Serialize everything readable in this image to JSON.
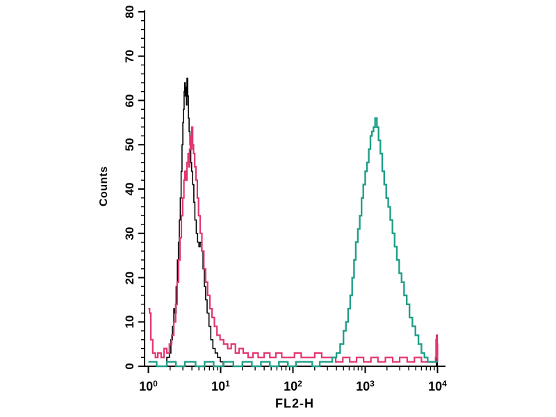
{
  "figure": {
    "background": "#ffffff",
    "axis_color": "#000000"
  },
  "chart_data": {
    "type": "line",
    "chart_kind": "flow-cytometry histogram overlay, stepped traces, no legend, no gridlines",
    "title": "",
    "xlabel": "FL2-H",
    "ylabel": "Counts",
    "x_scale": "log10",
    "x_range": [
      1,
      10000
    ],
    "y_range": [
      0,
      80
    ],
    "x_tick_base": "10",
    "x_tick_exponents": [
      "0",
      "1",
      "2",
      "3",
      "4"
    ],
    "y_tick_labels": [
      "0",
      "10",
      "20",
      "30",
      "40",
      "50",
      "60",
      "70",
      "80"
    ],
    "y_minor_tick_step": 2,
    "grid": "off",
    "legend": "none",
    "series": [
      {
        "name": "black-trace",
        "color": "#000000",
        "stroke_width": 1.6,
        "peak": {
          "x": 3.4,
          "count": 65
        },
        "points": [
          [
            1,
            0
          ],
          [
            1.7,
            0
          ],
          [
            1.8,
            2
          ],
          [
            1.95,
            3
          ],
          [
            2.05,
            6
          ],
          [
            2.15,
            9
          ],
          [
            2.25,
            13
          ],
          [
            2.32,
            12
          ],
          [
            2.42,
            18
          ],
          [
            2.52,
            24
          ],
          [
            2.6,
            28
          ],
          [
            2.68,
            33
          ],
          [
            2.76,
            38
          ],
          [
            2.84,
            44
          ],
          [
            2.92,
            50
          ],
          [
            3.0,
            55
          ],
          [
            3.06,
            58
          ],
          [
            3.12,
            62
          ],
          [
            3.18,
            64
          ],
          [
            3.24,
            61
          ],
          [
            3.3,
            63
          ],
          [
            3.36,
            59
          ],
          [
            3.42,
            65
          ],
          [
            3.5,
            61
          ],
          [
            3.58,
            56
          ],
          [
            3.66,
            53
          ],
          [
            3.76,
            50
          ],
          [
            3.86,
            46
          ],
          [
            3.96,
            44
          ],
          [
            4.1,
            41
          ],
          [
            4.25,
            37
          ],
          [
            4.4,
            33
          ],
          [
            4.6,
            30
          ],
          [
            4.8,
            28
          ],
          [
            5.0,
            27
          ],
          [
            5.2,
            28
          ],
          [
            5.45,
            26
          ],
          [
            5.7,
            22
          ],
          [
            5.95,
            18
          ],
          [
            6.2,
            15
          ],
          [
            6.5,
            12
          ],
          [
            6.9,
            9
          ],
          [
            7.3,
            6
          ],
          [
            7.8,
            4
          ],
          [
            8.4,
            3
          ],
          [
            9.1,
            2
          ],
          [
            9.9,
            1
          ],
          [
            10.8,
            0
          ],
          [
            9000,
            0
          ],
          [
            9550,
            0
          ],
          [
            9650,
            7
          ],
          [
            9850,
            7
          ],
          [
            9950,
            0
          ]
        ]
      },
      {
        "name": "magenta-trace",
        "color": "#e13570",
        "stroke_width": 2.2,
        "peak": {
          "x": 4.0,
          "count": 54
        },
        "points": [
          [
            1,
            13
          ],
          [
            1.04,
            12
          ],
          [
            1.08,
            6
          ],
          [
            1.15,
            3
          ],
          [
            1.25,
            2
          ],
          [
            1.35,
            3
          ],
          [
            1.5,
            2
          ],
          [
            1.65,
            4
          ],
          [
            1.8,
            3
          ],
          [
            1.95,
            5
          ],
          [
            2.1,
            7
          ],
          [
            2.25,
            10
          ],
          [
            2.38,
            14
          ],
          [
            2.5,
            19
          ],
          [
            2.62,
            24
          ],
          [
            2.74,
            29
          ],
          [
            2.86,
            34
          ],
          [
            2.98,
            38
          ],
          [
            3.1,
            42
          ],
          [
            3.2,
            44
          ],
          [
            3.3,
            42
          ],
          [
            3.42,
            46
          ],
          [
            3.54,
            48
          ],
          [
            3.62,
            45
          ],
          [
            3.72,
            49
          ],
          [
            3.82,
            52
          ],
          [
            3.9,
            49
          ],
          [
            4.0,
            54
          ],
          [
            4.1,
            50
          ],
          [
            4.22,
            48
          ],
          [
            4.38,
            45
          ],
          [
            4.55,
            42
          ],
          [
            4.75,
            38
          ],
          [
            4.95,
            34
          ],
          [
            5.2,
            30
          ],
          [
            5.5,
            26
          ],
          [
            5.85,
            22
          ],
          [
            6.2,
            19
          ],
          [
            6.6,
            16
          ],
          [
            7.1,
            13
          ],
          [
            7.6,
            11
          ],
          [
            8.2,
            9
          ],
          [
            8.9,
            7
          ],
          [
            9.8,
            6
          ],
          [
            11,
            5
          ],
          [
            12.5,
            4
          ],
          [
            14,
            5
          ],
          [
            16,
            3
          ],
          [
            18,
            4
          ],
          [
            20.5,
            3
          ],
          [
            24,
            2
          ],
          [
            28,
            3
          ],
          [
            33,
            2
          ],
          [
            40,
            3
          ],
          [
            48,
            2
          ],
          [
            58,
            3
          ],
          [
            70,
            2
          ],
          [
            85,
            2
          ],
          [
            105,
            3
          ],
          [
            130,
            2
          ],
          [
            160,
            2
          ],
          [
            200,
            3
          ],
          [
            250,
            2
          ],
          [
            310,
            2
          ],
          [
            390,
            1
          ],
          [
            490,
            2
          ],
          [
            610,
            1
          ],
          [
            760,
            2
          ],
          [
            950,
            1
          ],
          [
            1200,
            2
          ],
          [
            1500,
            1
          ],
          [
            1900,
            2
          ],
          [
            2400,
            1
          ],
          [
            3000,
            2
          ],
          [
            3800,
            1
          ],
          [
            4800,
            2
          ],
          [
            6000,
            1
          ],
          [
            7500,
            1
          ],
          [
            8800,
            1
          ],
          [
            9400,
            2
          ],
          [
            9550,
            6
          ],
          [
            9750,
            7
          ],
          [
            9900,
            5
          ],
          [
            10000,
            1
          ]
        ]
      },
      {
        "name": "teal-trace",
        "color": "#1e9e88",
        "stroke_width": 2.4,
        "peak": {
          "x": 1400,
          "count": 56
        },
        "points": [
          [
            1,
            1
          ],
          [
            1.3,
            0
          ],
          [
            1.8,
            1
          ],
          [
            2.4,
            0
          ],
          [
            3.2,
            1
          ],
          [
            4.5,
            0
          ],
          [
            6,
            1
          ],
          [
            8,
            0
          ],
          [
            11,
            1
          ],
          [
            15,
            0
          ],
          [
            20,
            1
          ],
          [
            27,
            0
          ],
          [
            36,
            1
          ],
          [
            48,
            0
          ],
          [
            64,
            1
          ],
          [
            85,
            0
          ],
          [
            110,
            1
          ],
          [
            145,
            1
          ],
          [
            185,
            0
          ],
          [
            235,
            1
          ],
          [
            290,
            1
          ],
          [
            350,
            2
          ],
          [
            400,
            3
          ],
          [
            450,
            5
          ],
          [
            500,
            8
          ],
          [
            540,
            10
          ],
          [
            580,
            13
          ],
          [
            620,
            16
          ],
          [
            660,
            20
          ],
          [
            700,
            24
          ],
          [
            740,
            28
          ],
          [
            790,
            31
          ],
          [
            840,
            34
          ],
          [
            890,
            38
          ],
          [
            940,
            41
          ],
          [
            1000,
            44
          ],
          [
            1060,
            46
          ],
          [
            1120,
            49
          ],
          [
            1180,
            52
          ],
          [
            1240,
            53
          ],
          [
            1300,
            54
          ],
          [
            1370,
            56
          ],
          [
            1450,
            54
          ],
          [
            1530,
            51
          ],
          [
            1620,
            48
          ],
          [
            1720,
            44
          ],
          [
            1830,
            41
          ],
          [
            1950,
            38
          ],
          [
            2080,
            36
          ],
          [
            2220,
            33
          ],
          [
            2380,
            30
          ],
          [
            2550,
            27
          ],
          [
            2740,
            24
          ],
          [
            2950,
            21
          ],
          [
            3180,
            19
          ],
          [
            3450,
            16
          ],
          [
            3750,
            14
          ],
          [
            4100,
            11
          ],
          [
            4500,
            9
          ],
          [
            4950,
            7
          ],
          [
            5450,
            5
          ],
          [
            6000,
            3
          ],
          [
            6600,
            2
          ],
          [
            7300,
            1
          ],
          [
            8100,
            1
          ],
          [
            9000,
            1
          ],
          [
            10000,
            1
          ]
        ]
      }
    ]
  }
}
